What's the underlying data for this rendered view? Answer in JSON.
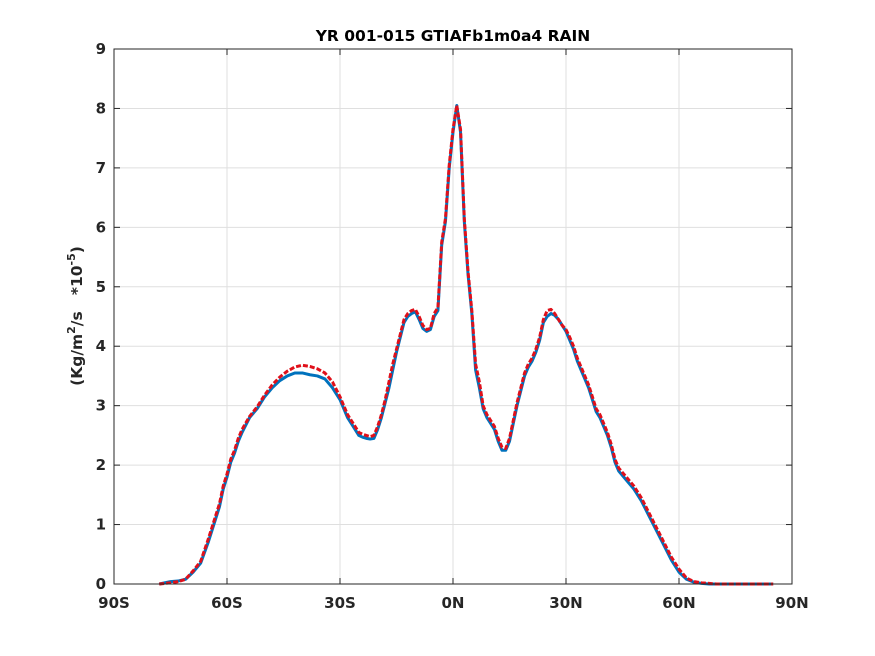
{
  "chart_data": {
    "type": "line",
    "title": "YR 001-015 GTIAFb1m0a4 RAIN",
    "xlabel": "",
    "ylabel": {
      "prefix": "(Kg/m",
      "exp1": "2",
      "middle": "/s   *10",
      "exp2": "-5",
      "suffix": ")"
    },
    "xlim": [
      -90,
      90
    ],
    "ylim": [
      0,
      9
    ],
    "x_ticks": [
      -90,
      -60,
      -30,
      0,
      30,
      60,
      90
    ],
    "x_tick_labels": [
      "90S",
      "60S",
      "30S",
      "0N",
      "30N",
      "60N",
      "90N"
    ],
    "y_ticks": [
      0,
      1,
      2,
      3,
      4,
      5,
      6,
      7,
      8,
      9
    ],
    "y_tick_labels": [
      "0",
      "1",
      "2",
      "3",
      "4",
      "5",
      "6",
      "7",
      "8",
      "9"
    ],
    "grid": true,
    "series": [
      {
        "color": "#0072BD",
        "style": "solid",
        "x": [
          -78,
          -75,
          -73,
          -71,
          -69,
          -67,
          -65,
          -63,
          -62,
          -61,
          -60,
          -59,
          -58,
          -57,
          -56,
          -54,
          -52,
          -50,
          -48,
          -46,
          -44,
          -42,
          -40,
          -38,
          -36,
          -34,
          -32,
          -30,
          -28,
          -26,
          -25,
          -24,
          -23,
          -22,
          -21,
          -20,
          -19,
          -18,
          -17,
          -16,
          -15,
          -14,
          -13,
          -12,
          -11,
          -10,
          -9,
          -8,
          -7,
          -6,
          -5,
          -4,
          -3,
          -2,
          -1,
          0,
          1,
          2,
          3,
          4,
          5,
          6,
          7,
          8,
          9,
          10,
          11,
          12,
          13,
          14,
          15,
          16,
          17,
          18,
          19,
          20,
          21,
          22,
          23,
          24,
          25,
          26,
          27,
          28,
          29,
          30,
          31,
          32,
          33,
          34,
          35,
          36,
          37,
          38,
          39,
          40,
          41,
          42,
          43,
          44,
          46,
          48,
          50,
          52,
          54,
          56,
          58,
          60,
          62,
          64,
          66,
          68,
          70,
          72,
          74,
          76,
          78,
          80,
          82,
          84,
          85
        ],
        "y": [
          0.0,
          0.04,
          0.05,
          0.08,
          0.2,
          0.35,
          0.7,
          1.1,
          1.3,
          1.6,
          1.8,
          2.05,
          2.2,
          2.4,
          2.55,
          2.8,
          2.95,
          3.15,
          3.3,
          3.42,
          3.5,
          3.55,
          3.55,
          3.52,
          3.5,
          3.45,
          3.3,
          3.1,
          2.8,
          2.6,
          2.5,
          2.47,
          2.45,
          2.44,
          2.45,
          2.6,
          2.8,
          3.05,
          3.3,
          3.6,
          3.9,
          4.15,
          4.4,
          4.5,
          4.55,
          4.58,
          4.45,
          4.3,
          4.25,
          4.28,
          4.5,
          4.6,
          5.7,
          6.1,
          7.0,
          7.6,
          8.05,
          7.6,
          6.1,
          5.2,
          4.55,
          3.6,
          3.3,
          2.95,
          2.8,
          2.7,
          2.6,
          2.4,
          2.25,
          2.25,
          2.4,
          2.7,
          3.0,
          3.25,
          3.5,
          3.65,
          3.75,
          3.9,
          4.1,
          4.4,
          4.5,
          4.55,
          4.52,
          4.45,
          4.35,
          4.25,
          4.1,
          3.95,
          3.75,
          3.6,
          3.45,
          3.3,
          3.1,
          2.9,
          2.8,
          2.65,
          2.5,
          2.3,
          2.05,
          1.9,
          1.75,
          1.6,
          1.4,
          1.15,
          0.9,
          0.65,
          0.4,
          0.2,
          0.08,
          0.03,
          0.01,
          0.0,
          0.0,
          0.0,
          0.0,
          0.0,
          0.0,
          0.0,
          0.0,
          0.0,
          0.0
        ]
      },
      {
        "color": "#E0101A",
        "style": "dashed",
        "x": [
          -78,
          -75,
          -73,
          -71,
          -69,
          -67,
          -65,
          -63,
          -62,
          -61,
          -60,
          -59,
          -58,
          -57,
          -56,
          -54,
          -52,
          -50,
          -48,
          -46,
          -44,
          -42,
          -40,
          -38,
          -36,
          -34,
          -32,
          -30,
          -28,
          -26,
          -25,
          -24,
          -23,
          -22,
          -21,
          -20,
          -19,
          -18,
          -17,
          -16,
          -15,
          -14,
          -13,
          -12,
          -11,
          -10,
          -9,
          -8,
          -7,
          -6,
          -5,
          -4,
          -3,
          -2,
          -1,
          0,
          1,
          2,
          3,
          4,
          5,
          6,
          7,
          8,
          9,
          10,
          11,
          12,
          13,
          14,
          15,
          16,
          17,
          18,
          19,
          20,
          21,
          22,
          23,
          24,
          25,
          26,
          27,
          28,
          29,
          30,
          31,
          32,
          33,
          34,
          35,
          36,
          37,
          38,
          39,
          40,
          41,
          42,
          43,
          44,
          46,
          48,
          50,
          52,
          54,
          56,
          58,
          60,
          62,
          64,
          66,
          68,
          70,
          72,
          74,
          76,
          78,
          80,
          82,
          84,
          85
        ],
        "y": [
          0.0,
          0.02,
          0.04,
          0.08,
          0.22,
          0.38,
          0.75,
          1.15,
          1.35,
          1.65,
          1.85,
          2.1,
          2.25,
          2.45,
          2.6,
          2.82,
          2.98,
          3.18,
          3.35,
          3.48,
          3.58,
          3.65,
          3.68,
          3.66,
          3.62,
          3.55,
          3.4,
          3.15,
          2.85,
          2.65,
          2.55,
          2.52,
          2.5,
          2.48,
          2.5,
          2.65,
          2.85,
          3.1,
          3.4,
          3.7,
          3.95,
          4.2,
          4.45,
          4.55,
          4.6,
          4.62,
          4.5,
          4.35,
          4.28,
          4.3,
          4.55,
          4.65,
          5.75,
          6.15,
          7.05,
          7.65,
          8.05,
          7.65,
          6.15,
          5.25,
          4.6,
          3.7,
          3.4,
          3.0,
          2.85,
          2.75,
          2.65,
          2.45,
          2.3,
          2.28,
          2.45,
          2.75,
          3.05,
          3.3,
          3.55,
          3.7,
          3.8,
          3.95,
          4.15,
          4.45,
          4.6,
          4.62,
          4.55,
          4.45,
          4.35,
          4.28,
          4.15,
          4.0,
          3.8,
          3.65,
          3.5,
          3.35,
          3.15,
          2.95,
          2.85,
          2.7,
          2.55,
          2.35,
          2.1,
          1.95,
          1.8,
          1.65,
          1.45,
          1.2,
          0.95,
          0.7,
          0.45,
          0.25,
          0.1,
          0.04,
          0.02,
          0.01,
          0.0,
          0.0,
          0.0,
          0.0,
          0.0,
          0.0,
          0.0,
          0.0,
          0.0
        ]
      }
    ]
  }
}
